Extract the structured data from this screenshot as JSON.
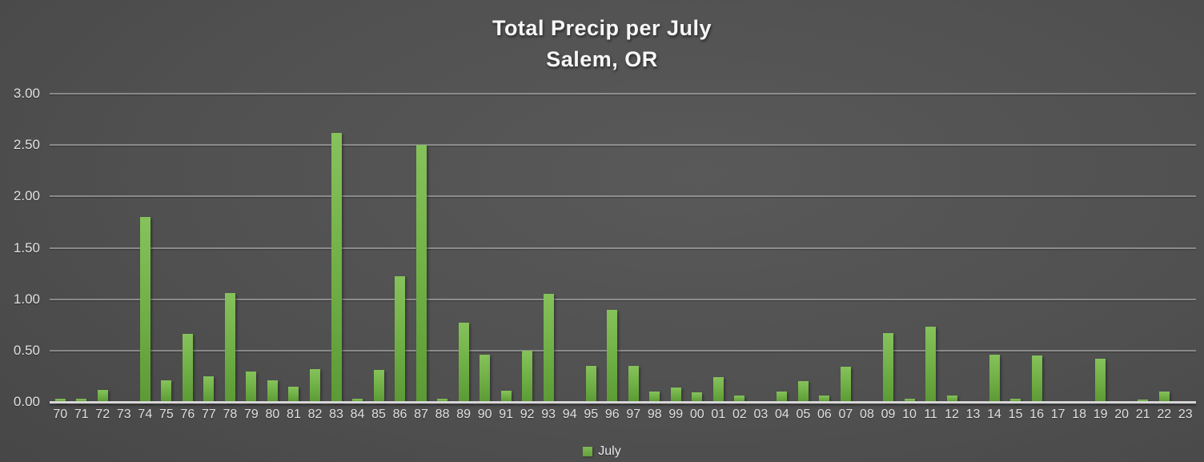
{
  "title": {
    "line1": "Total Precip per July",
    "line2": "Salem, OR"
  },
  "legend": {
    "label": "July",
    "swatch_color": "#6fae45"
  },
  "colors": {
    "bar_gradient_top": "#86c25b",
    "bar_gradient_bottom": "#5c9a35",
    "background_center": "#595959",
    "background_edge": "#303030",
    "gridline": "#dbdbdb",
    "axis_line": "#d6d6d6",
    "tick_text": "#e0e0e0",
    "title_text": "#f7f7f7"
  },
  "chart_data": {
    "type": "bar",
    "title": "Total Precip per July",
    "subtitle": "Salem, OR",
    "xlabel": "",
    "ylabel": "",
    "ylim": [
      0,
      3.0
    ],
    "y_tick_labels": [
      "3.00",
      "2.50",
      "2.00",
      "1.50",
      "1.00",
      "0.50",
      "0.00"
    ],
    "y_tick_values": [
      3.0,
      2.5,
      2.0,
      1.5,
      1.0,
      0.5,
      0.0
    ],
    "grid": true,
    "legend_position": "bottom",
    "series_name": "July",
    "categories": [
      "70",
      "71",
      "72",
      "73",
      "74",
      "75",
      "76",
      "77",
      "78",
      "79",
      "80",
      "81",
      "82",
      "83",
      "84",
      "85",
      "86",
      "87",
      "88",
      "89",
      "90",
      "91",
      "92",
      "93",
      "94",
      "95",
      "96",
      "97",
      "98",
      "99",
      "00",
      "01",
      "02",
      "03",
      "04",
      "05",
      "06",
      "07",
      "08",
      "09",
      "10",
      "11",
      "12",
      "13",
      "14",
      "15",
      "16",
      "17",
      "18",
      "19",
      "20",
      "21",
      "22",
      "23"
    ],
    "values": [
      0.03,
      0.03,
      0.12,
      0,
      1.8,
      0.21,
      0.66,
      0.25,
      1.06,
      0.3,
      0.21,
      0.15,
      0.32,
      2.62,
      0.03,
      0.31,
      1.22,
      2.5,
      0.03,
      0.77,
      0.46,
      0.11,
      0.5,
      1.05,
      0,
      0.35,
      0.9,
      0.35,
      0.1,
      0.14,
      0.09,
      0.24,
      0.06,
      0,
      0.1,
      0.2,
      0.06,
      0.34,
      0,
      0.67,
      0.03,
      0.73,
      0.06,
      0,
      0.46,
      0.03,
      0.45,
      0,
      0,
      0.42,
      0,
      0.02,
      0.1,
      0
    ]
  }
}
